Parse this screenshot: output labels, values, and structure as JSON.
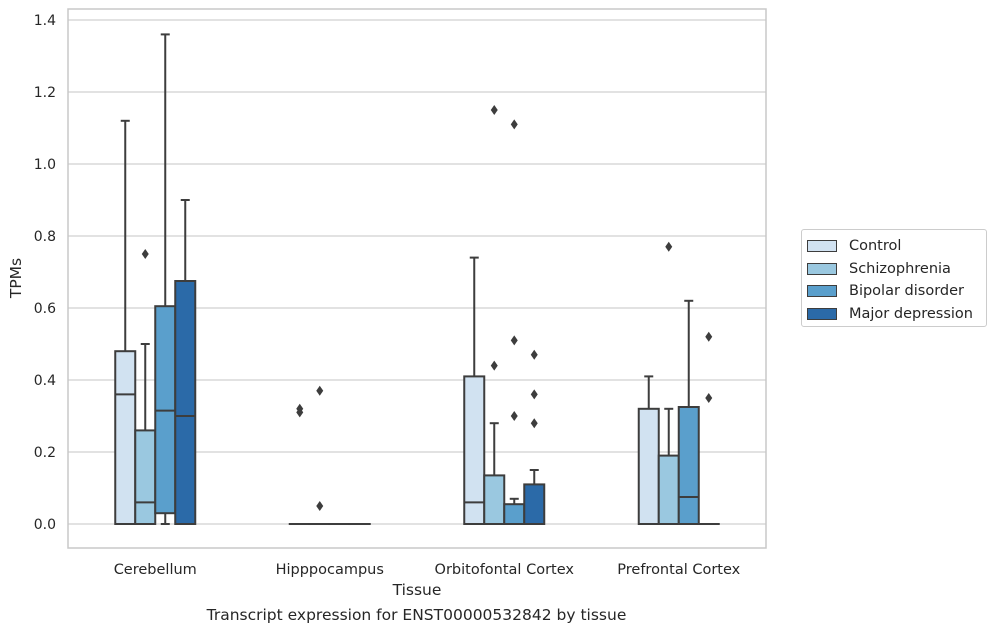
{
  "caption": "Transcript expression for ENST00000532842 by tissue",
  "chart_data": {
    "type": "box",
    "title": "",
    "xlabel": "Tissue",
    "ylabel": "TPMs",
    "ylim": [
      -0.065,
      1.44
    ],
    "yticks": [
      "0.0",
      "0.2",
      "0.4",
      "0.6",
      "0.8",
      "1.0",
      "1.2",
      "1.4"
    ],
    "grid": true,
    "legend_position": "right",
    "categories": [
      "Cerebellum",
      "Hipppocampus",
      "Orbitofontal Cortex",
      "Prefrontal Cortex"
    ],
    "series": [
      {
        "name": "Control",
        "color": "#d1e2f1",
        "boxes": [
          {
            "q1": 0.0,
            "median": 0.36,
            "q3": 0.48,
            "whisker_low": 0.0,
            "whisker_high": 1.12,
            "outliers": []
          },
          {
            "q1": 0.0,
            "median": 0.0,
            "q3": 0.0,
            "whisker_low": 0.0,
            "whisker_high": 0.0,
            "outliers": [
              0.31,
              0.32
            ]
          },
          {
            "q1": 0.0,
            "median": 0.06,
            "q3": 0.41,
            "whisker_low": 0.0,
            "whisker_high": 0.74,
            "outliers": []
          },
          {
            "q1": 0.0,
            "median": 0.0,
            "q3": 0.32,
            "whisker_low": 0.0,
            "whisker_high": 0.41,
            "outliers": []
          }
        ]
      },
      {
        "name": "Schizophrenia",
        "color": "#9ac8e0",
        "boxes": [
          {
            "q1": 0.0,
            "median": 0.06,
            "q3": 0.26,
            "whisker_low": 0.0,
            "whisker_high": 0.5,
            "outliers": [
              0.75
            ]
          },
          {
            "q1": 0.0,
            "median": 0.0,
            "q3": 0.0,
            "whisker_low": 0.0,
            "whisker_high": 0.0,
            "outliers": [
              0.37,
              0.05
            ]
          },
          {
            "q1": 0.0,
            "median": 0.0,
            "q3": 0.135,
            "whisker_low": 0.0,
            "whisker_high": 0.28,
            "outliers": [
              0.44,
              1.15
            ]
          },
          {
            "q1": 0.0,
            "median": 0.0,
            "q3": 0.19,
            "whisker_low": 0.0,
            "whisker_high": 0.32,
            "outliers": [
              0.77
            ]
          }
        ]
      },
      {
        "name": "Bipolar disorder",
        "color": "#5a9fcc",
        "boxes": [
          {
            "q1": 0.03,
            "median": 0.315,
            "q3": 0.605,
            "whisker_low": 0.0,
            "whisker_high": 1.36,
            "outliers": []
          },
          {
            "q1": 0.0,
            "median": 0.0,
            "q3": 0.0,
            "whisker_low": 0.0,
            "whisker_high": 0.0,
            "outliers": []
          },
          {
            "q1": 0.0,
            "median": 0.0,
            "q3": 0.055,
            "whisker_low": 0.0,
            "whisker_high": 0.07,
            "outliers": [
              0.3,
              0.51,
              1.11
            ]
          },
          {
            "q1": 0.0,
            "median": 0.075,
            "q3": 0.325,
            "whisker_low": 0.0,
            "whisker_high": 0.62,
            "outliers": []
          }
        ]
      },
      {
        "name": "Major depression",
        "color": "#2b6aa8",
        "boxes": [
          {
            "q1": 0.0,
            "median": 0.3,
            "q3": 0.675,
            "whisker_low": 0.0,
            "whisker_high": 0.9,
            "outliers": []
          },
          {
            "q1": 0.0,
            "median": 0.0,
            "q3": 0.0,
            "whisker_low": 0.0,
            "whisker_high": 0.0,
            "outliers": []
          },
          {
            "q1": 0.0,
            "median": 0.0,
            "q3": 0.11,
            "whisker_low": 0.0,
            "whisker_high": 0.15,
            "outliers": [
              0.28,
              0.36,
              0.47
            ]
          },
          {
            "q1": 0.0,
            "median": 0.0,
            "q3": 0.0,
            "whisker_low": 0.0,
            "whisker_high": 0.0,
            "outliers": [
              0.35,
              0.52
            ]
          }
        ]
      }
    ]
  }
}
